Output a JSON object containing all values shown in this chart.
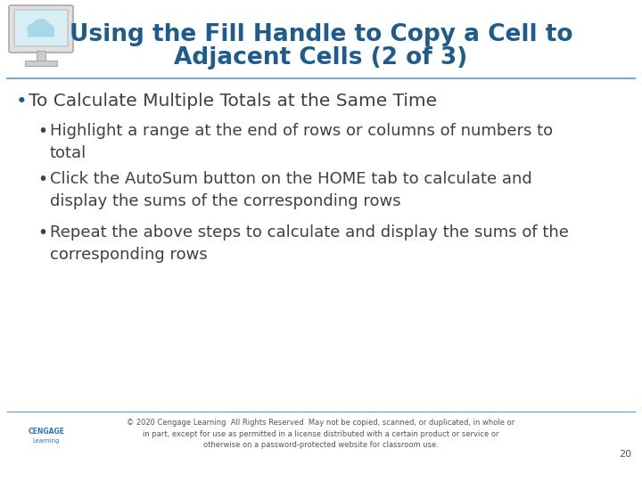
{
  "title_line1": "Using the Fill Handle to Copy a Cell to",
  "title_line2": "Adjacent Cells (2 of 3)",
  "title_color": "#1F5C8B",
  "bg_color": "#FFFFFF",
  "separator_color": "#5B9BD5",
  "bullet1": "To Calculate Multiple Totals at the Same Time",
  "bullet1_color": "#404040",
  "sub_bullet_color": "#404040",
  "footer_text": "© 2020 Cengage Learning  All Rights Reserved  May not be copied, scanned, or duplicated, in whole or\nin part, except for use as permitted in a license distributed with a certain product or service or\notherwise on a password-protected website for classroom use.",
  "footer_color": "#555555",
  "page_number": "20",
  "title_fontsize": 19,
  "bullet1_fontsize": 14.5,
  "sub_bullet_fontsize": 13,
  "footer_fontsize": 6.0
}
